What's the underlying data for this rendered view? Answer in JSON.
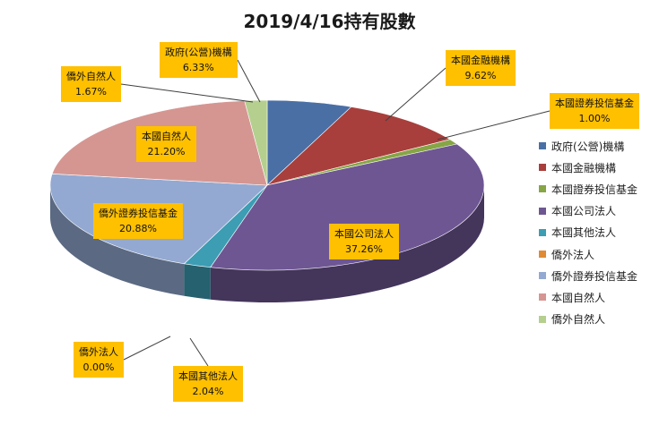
{
  "chart_data": {
    "type": "pie",
    "title": "2019/4/16持有股數",
    "legend_position": "right",
    "slices": [
      {
        "name": "政府(公營)機構",
        "value": 6.33,
        "label": "6.33%",
        "color": "#4a6fa5"
      },
      {
        "name": "本國金融機構",
        "value": 9.62,
        "label": "9.62%",
        "color": "#a83f3c"
      },
      {
        "name": "本國證券投信基金",
        "value": 1.0,
        "label": "1.00%",
        "color": "#86a545"
      },
      {
        "name": "本國公司法人",
        "value": 37.26,
        "label": "37.26%",
        "color": "#6e5693"
      },
      {
        "name": "本國其他法人",
        "value": 2.04,
        "label": "2.04%",
        "color": "#3c9db3"
      },
      {
        "name": "僑外法人",
        "value": 0.0,
        "label": "0.00%",
        "color": "#e08a33"
      },
      {
        "name": "僑外證券投信基金",
        "value": 20.88,
        "label": "20.88%",
        "color": "#93a9d1"
      },
      {
        "name": "本國自然人",
        "value": 21.2,
        "label": "21.20%",
        "color": "#d59692"
      },
      {
        "name": "僑外自然人",
        "value": 1.67,
        "label": "1.67%",
        "color": "#b5cf8f"
      }
    ]
  }
}
